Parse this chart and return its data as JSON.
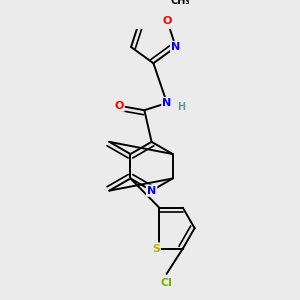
{
  "background_color": "#ebebeb",
  "bond_color": "#000000",
  "atom_colors": {
    "N": "#0000ff",
    "O": "#ff0000",
    "S": "#b8b400",
    "Cl": "#7db000",
    "C": "#000000",
    "H": "#5f9ea0"
  }
}
